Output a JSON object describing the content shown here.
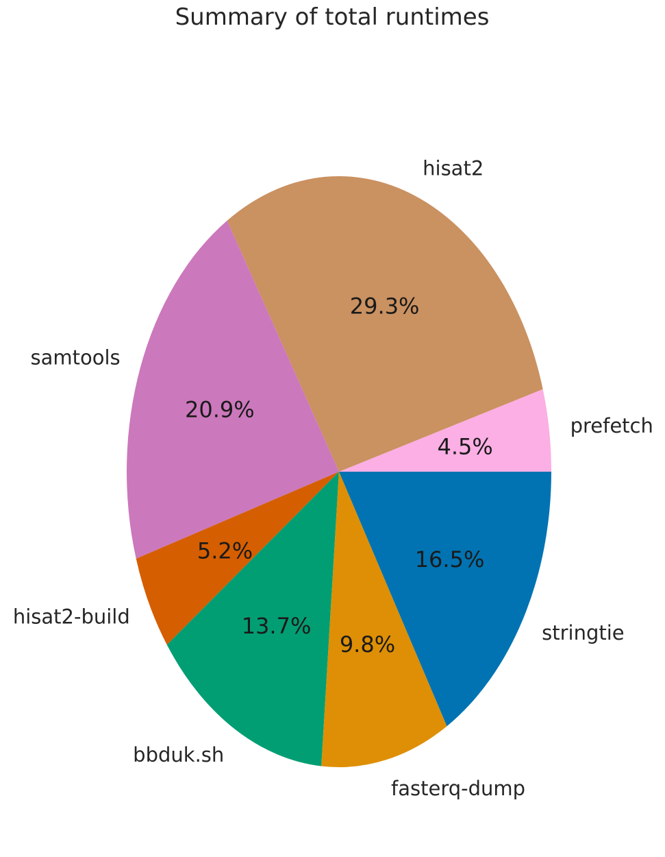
{
  "chart_data": {
    "type": "pie",
    "title": "Summary of total runtimes",
    "slices": [
      {
        "label": "prefetch",
        "value": 4.5,
        "pct_label": "4.5%",
        "color": "#fbafe4"
      },
      {
        "label": "hisat2",
        "value": 29.3,
        "pct_label": "29.3%",
        "color": "#ca9161"
      },
      {
        "label": "samtools",
        "value": 20.9,
        "pct_label": "20.9%",
        "color": "#cc78bc"
      },
      {
        "label": "hisat2-build",
        "value": 5.2,
        "pct_label": "5.2%",
        "color": "#d55e00"
      },
      {
        "label": "bbduk.sh",
        "value": 13.7,
        "pct_label": "13.7%",
        "color": "#029e73"
      },
      {
        "label": "fasterq-dump",
        "value": 9.8,
        "pct_label": "9.8%",
        "color": "#de8f05"
      },
      {
        "label": "stringtie",
        "value": 16.5,
        "pct_label": "16.5%",
        "color": "#0173b2"
      }
    ],
    "start_angle_deg": 0,
    "direction": "counterclockwise"
  }
}
